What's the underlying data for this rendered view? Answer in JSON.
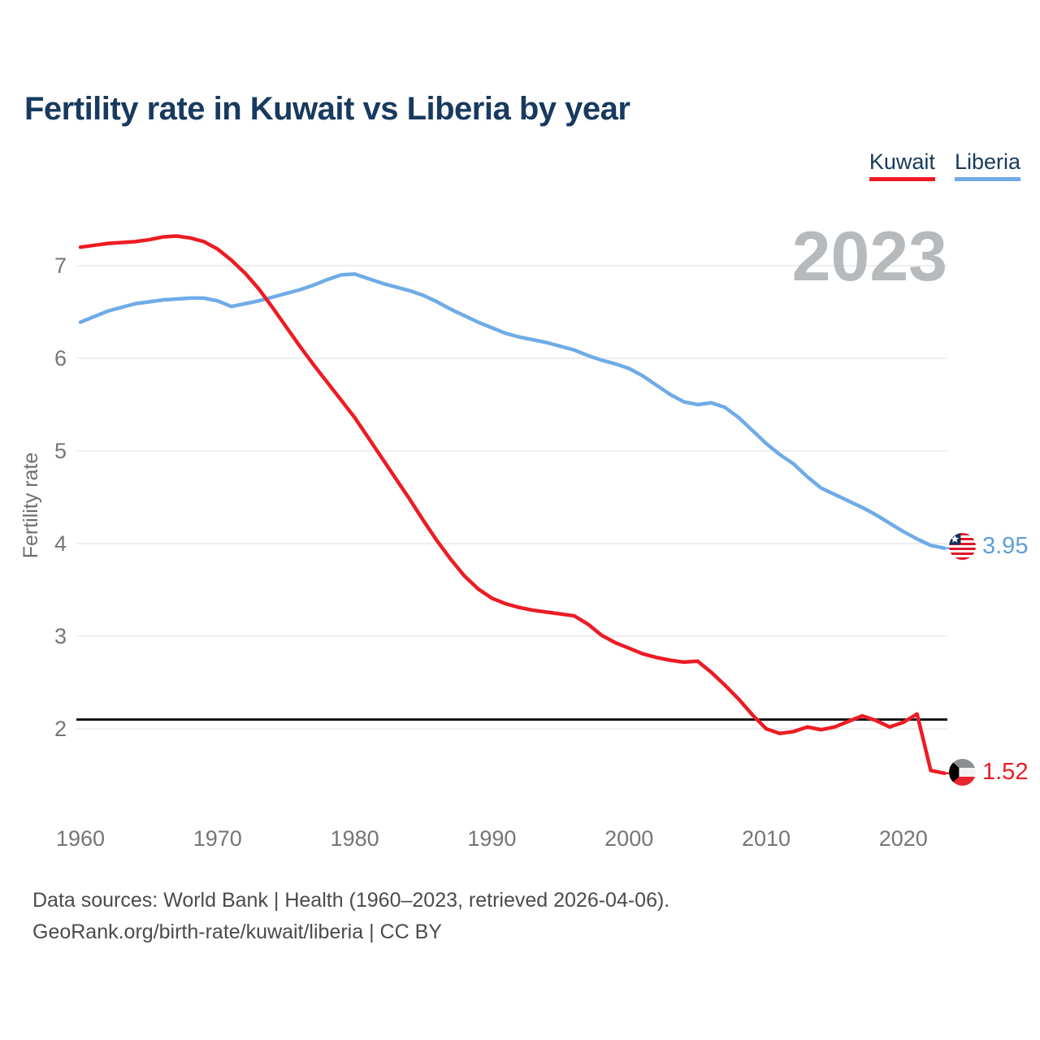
{
  "title": "Fertility rate in Kuwait vs Liberia by year",
  "watermark": "2023",
  "legend": {
    "items": [
      {
        "label": "Kuwait",
        "color": "#ed1b24"
      },
      {
        "label": "Liberia",
        "color": "#6fabe6"
      }
    ]
  },
  "footer": {
    "line1": "Data sources: World Bank | Health (1960–2023, retrieved 2026-04-06).",
    "line2": "GeoRank.org/birth-rate/kuwait/liberia | CC BY"
  },
  "chart_data": {
    "type": "line",
    "title": "Fertility rate in Kuwait vs Liberia by year",
    "xlabel": "",
    "ylabel": "Fertility rate",
    "grid": true,
    "legend_position": "top-right",
    "ylim": [
      1.3,
      7.5
    ],
    "yticks": [
      2,
      3,
      4,
      5,
      6,
      7
    ],
    "xticks": [
      1960,
      1970,
      1980,
      1990,
      2000,
      2010,
      2020
    ],
    "threshold": 2.1,
    "x": [
      1960,
      1961,
      1962,
      1963,
      1964,
      1965,
      1966,
      1967,
      1968,
      1969,
      1970,
      1971,
      1972,
      1973,
      1974,
      1975,
      1976,
      1977,
      1978,
      1979,
      1980,
      1981,
      1982,
      1983,
      1984,
      1985,
      1986,
      1987,
      1988,
      1989,
      1990,
      1991,
      1992,
      1993,
      1994,
      1995,
      1996,
      1997,
      1998,
      1999,
      2000,
      2001,
      2002,
      2003,
      2004,
      2005,
      2006,
      2007,
      2008,
      2009,
      2010,
      2011,
      2012,
      2013,
      2014,
      2015,
      2016,
      2017,
      2018,
      2019,
      2020,
      2021,
      2022,
      2023
    ],
    "series": [
      {
        "name": "Kuwait",
        "color": "#ed1b24",
        "end_label": "1.52",
        "values": [
          7.2,
          7.22,
          7.24,
          7.25,
          7.26,
          7.28,
          7.31,
          7.32,
          7.3,
          7.26,
          7.18,
          7.06,
          6.92,
          6.75,
          6.55,
          6.34,
          6.13,
          5.93,
          5.74,
          5.55,
          5.36,
          5.14,
          4.92,
          4.7,
          4.48,
          4.25,
          4.03,
          3.83,
          3.65,
          3.51,
          3.41,
          3.35,
          3.31,
          3.28,
          3.26,
          3.24,
          3.22,
          3.13,
          3.01,
          2.93,
          2.87,
          2.81,
          2.77,
          2.74,
          2.72,
          2.73,
          2.61,
          2.47,
          2.32,
          2.15,
          2.0,
          1.95,
          1.97,
          2.02,
          1.99,
          2.02,
          2.08,
          2.14,
          2.09,
          2.02,
          2.07,
          2.16,
          1.55,
          1.52
        ]
      },
      {
        "name": "Liberia",
        "color": "#6fabe6",
        "end_label": "3.95",
        "values": [
          6.39,
          6.45,
          6.51,
          6.55,
          6.59,
          6.61,
          6.63,
          6.64,
          6.65,
          6.65,
          6.62,
          6.56,
          6.59,
          6.62,
          6.66,
          6.7,
          6.74,
          6.79,
          6.85,
          6.9,
          6.91,
          6.86,
          6.81,
          6.77,
          6.73,
          6.68,
          6.61,
          6.53,
          6.46,
          6.39,
          6.33,
          6.27,
          6.23,
          6.2,
          6.17,
          6.13,
          6.09,
          6.03,
          5.98,
          5.94,
          5.89,
          5.81,
          5.71,
          5.61,
          5.53,
          5.5,
          5.52,
          5.47,
          5.36,
          5.22,
          5.08,
          4.96,
          4.86,
          4.72,
          4.6,
          4.53,
          4.46,
          4.39,
          4.31,
          4.22,
          4.13,
          4.05,
          3.98,
          3.95
        ]
      }
    ]
  }
}
